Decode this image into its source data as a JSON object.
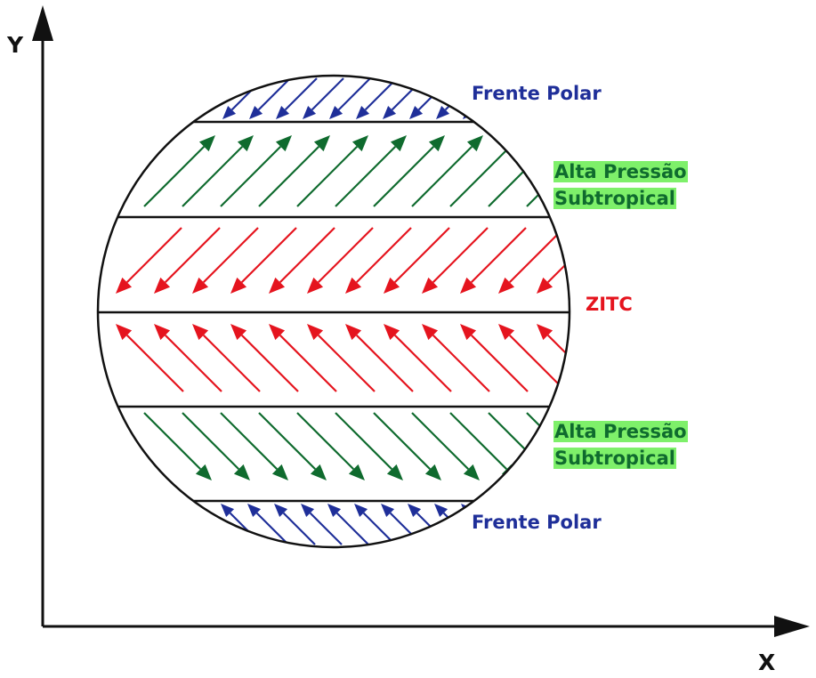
{
  "axes": {
    "x_label": "X",
    "y_label": "Y",
    "color": "#111111"
  },
  "labels": {
    "polar_north": "Frente Polar",
    "subtropical_north_line1": "Alta Pressão",
    "subtropical_north_line2": "Subtropical",
    "itcz": "ZITC",
    "subtropical_south_line1": "Alta Pressão",
    "subtropical_south_line2": "Subtropical",
    "polar_south": "Frente Polar"
  },
  "colors": {
    "polar": "#1f2f99",
    "subtropical": "#0f6b2e",
    "itcz": "#e5141e",
    "highlight": "#7ef06a",
    "outline": "#111111"
  },
  "bands": [
    {
      "name": "polar-north",
      "color": "polar",
      "direction": "down-left"
    },
    {
      "name": "subtropical-north",
      "color": "subtropical",
      "direction": "up-right"
    },
    {
      "name": "itcz-north",
      "color": "itcz",
      "direction": "down-left"
    },
    {
      "name": "itcz-south",
      "color": "itcz",
      "direction": "up-left"
    },
    {
      "name": "subtropical-south",
      "color": "subtropical",
      "direction": "down-right"
    },
    {
      "name": "polar-south",
      "color": "polar",
      "direction": "up-left"
    }
  ]
}
